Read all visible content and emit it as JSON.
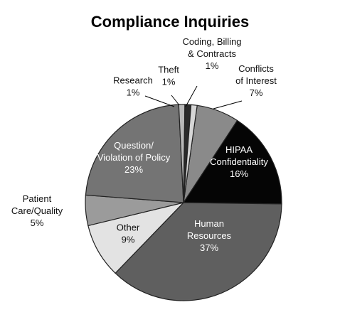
{
  "chart_data": {
    "type": "pie",
    "title": "Compliance Inquiries",
    "slices": [
      {
        "label": [
          "Conflicts",
          "of Interest"
        ],
        "value": 7,
        "value_label": "7%",
        "color": "#8a8a8a"
      },
      {
        "label": [
          "HIPAA",
          "Confidentiality"
        ],
        "value": 16,
        "value_label": "16%",
        "color": "#050505"
      },
      {
        "label": [
          "Human",
          "Resources"
        ],
        "value": 37,
        "value_label": "37%",
        "color": "#5f5f5f"
      },
      {
        "label": [
          "Other"
        ],
        "value": 9,
        "value_label": "9%",
        "color": "#e3e3e3"
      },
      {
        "label": [
          "Patient",
          "Care/Quality"
        ],
        "value": 5,
        "value_label": "5%",
        "color": "#9b9b9b"
      },
      {
        "label": [
          "Question/",
          "Violation of Policy"
        ],
        "value": 23,
        "value_label": "23%",
        "color": "#747474"
      },
      {
        "label": [
          "Research"
        ],
        "value": 1,
        "value_label": "1%",
        "color": "#b8b8b8"
      },
      {
        "label": [
          "Theft"
        ],
        "value": 1,
        "value_label": "1%",
        "color": "#2a2a2a"
      },
      {
        "label": [
          "Coding, Billing",
          "& Contracts"
        ],
        "value": 1,
        "value_label": "1%",
        "color": "#d6d6d6"
      }
    ]
  }
}
